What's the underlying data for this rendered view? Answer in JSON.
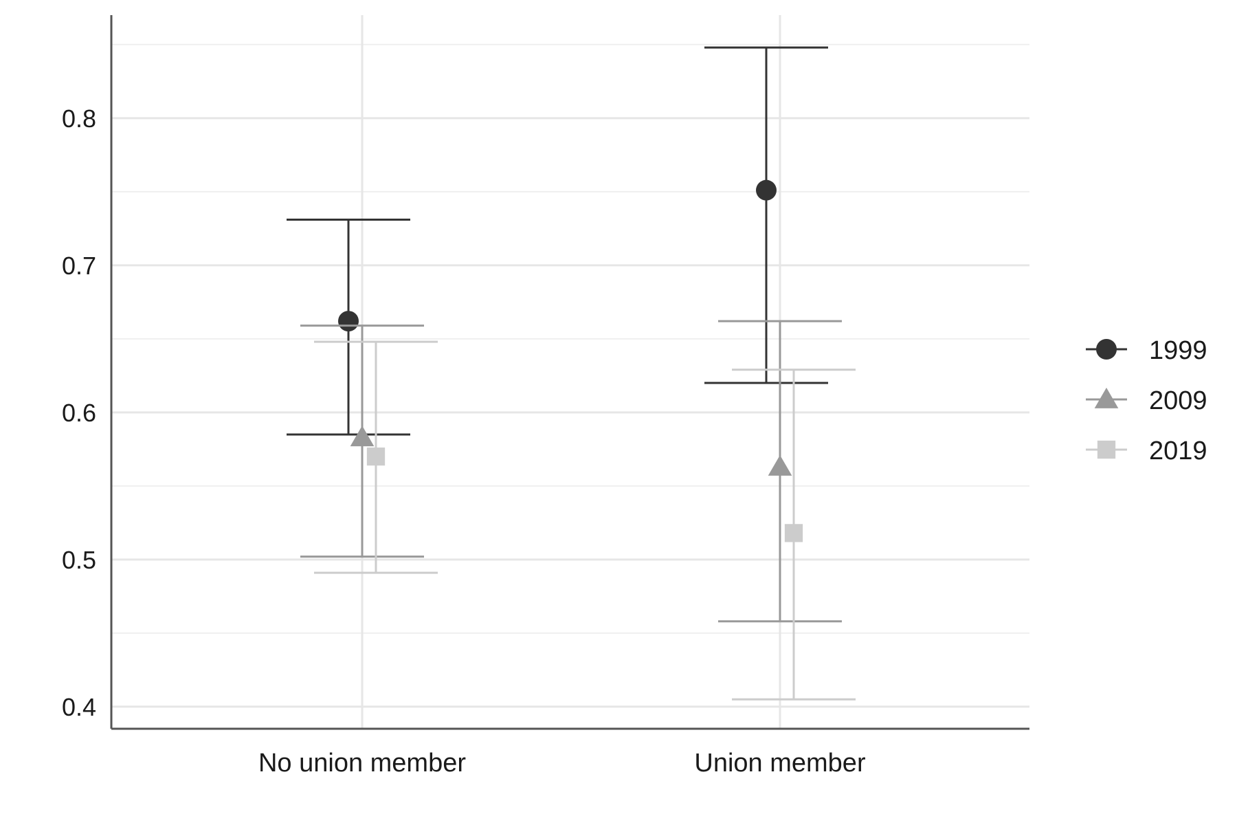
{
  "chart_data": {
    "type": "scatter",
    "subtype": "point-with-error-bars",
    "title": "",
    "xlabel": "",
    "ylabel": "",
    "categories": [
      "No union member",
      "Union member"
    ],
    "ylim": [
      0.385,
      0.87
    ],
    "yticks": [
      0.4,
      0.5,
      0.6,
      0.7,
      0.8
    ],
    "ytick_labels": [
      "0.4",
      "0.5",
      "0.6",
      "0.7",
      "0.8"
    ],
    "grid": true,
    "legend": {
      "position": "right",
      "title": ""
    },
    "series": [
      {
        "name": "1999",
        "marker": "circle",
        "color": "#333333",
        "values": [
          0.662,
          0.751
        ],
        "lower": [
          0.585,
          0.62
        ],
        "upper": [
          0.731,
          0.848
        ]
      },
      {
        "name": "2009",
        "marker": "triangle",
        "color": "#999999",
        "values": [
          0.583,
          0.563
        ],
        "lower": [
          0.502,
          0.458
        ],
        "upper": [
          0.659,
          0.662
        ]
      },
      {
        "name": "2019",
        "marker": "square",
        "color": "#cccccc",
        "values": [
          0.57,
          0.518
        ],
        "lower": [
          0.491,
          0.405
        ],
        "upper": [
          0.648,
          0.629
        ]
      }
    ]
  }
}
